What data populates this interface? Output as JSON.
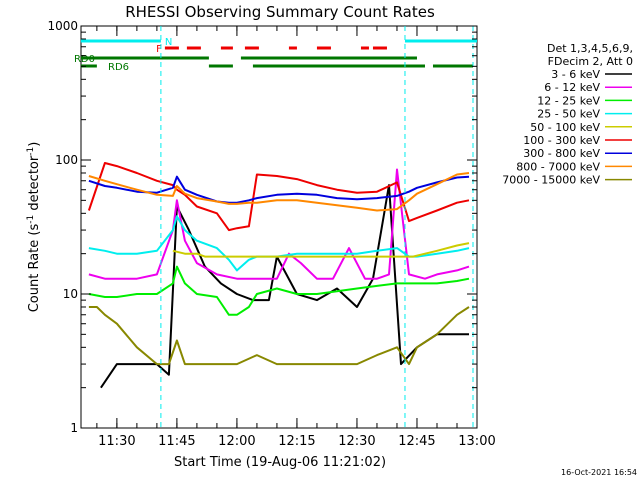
{
  "chart_data": {
    "type": "line",
    "title": "RHESSI Observing Summary Count Rates",
    "xlabel": "Start Time (19-Aug-06 11:21:02)",
    "ylabel": "Count Rate (s",
    "ylabel_sup1": "-1",
    "ylabel_mid": " detector",
    "ylabel_sup2": "-1",
    "ylabel_end": ")",
    "y_scale": "log",
    "xlim": [
      "11:21:02",
      "13:00:00"
    ],
    "ylim": [
      1,
      1000
    ],
    "x_ticks": [
      "11:30",
      "11:45",
      "12:00",
      "12:15",
      "12:30",
      "12:45",
      "13:00"
    ],
    "y_ticks": [
      "1",
      "10",
      "100",
      "1000"
    ],
    "timestamp": "16-Oct-2021 16:54",
    "legend": {
      "position": "right",
      "header": [
        "Det 1,3,4,5,6,9,",
        "FDecim 2, Att 0"
      ]
    },
    "series": [
      {
        "name": "3 - 6 keV",
        "color": "#000000",
        "x": [
          "11:26",
          "11:30",
          "11:35",
          "11:40",
          "11:43",
          "11:45",
          "11:48",
          "11:52",
          "11:56",
          "12:00",
          "12:04",
          "12:08",
          "12:10",
          "12:15",
          "12:20",
          "12:25",
          "12:30",
          "12:34",
          "12:38",
          "12:41",
          "12:45",
          "12:50",
          "12:55",
          "12:58"
        ],
        "y": [
          2,
          3,
          3,
          3,
          2.5,
          45,
          30,
          16,
          12,
          10,
          9,
          9,
          19,
          10,
          9,
          11,
          8,
          13,
          65,
          3,
          4,
          5,
          5,
          5
        ]
      },
      {
        "name": "6 - 12 keV",
        "color": "#ee00ee",
        "x": [
          "11:23",
          "11:27",
          "11:30",
          "11:35",
          "11:40",
          "11:44",
          "11:45",
          "11:47",
          "11:50",
          "11:55",
          "12:00",
          "12:05",
          "12:10",
          "12:13",
          "12:16",
          "12:20",
          "12:24",
          "12:28",
          "12:32",
          "12:35",
          "12:38",
          "12:40",
          "12:43",
          "12:47",
          "12:50",
          "12:55",
          "12:58"
        ],
        "y": [
          14,
          13,
          13,
          13,
          14,
          30,
          50,
          25,
          17,
          14,
          13,
          13,
          13,
          20,
          17,
          13,
          13,
          22,
          13,
          13,
          14,
          85,
          14,
          13,
          14,
          15,
          16
        ]
      },
      {
        "name": "12 - 25 keV",
        "color": "#00ee00",
        "x": [
          "11:23",
          "11:27",
          "11:30",
          "11:35",
          "11:40",
          "11:44",
          "11:45",
          "11:47",
          "11:50",
          "11:55",
          "11:58",
          "12:00",
          "12:03",
          "12:05",
          "12:10",
          "12:15",
          "12:20",
          "12:25",
          "12:30",
          "12:35",
          "12:40",
          "12:43",
          "12:45",
          "12:50",
          "12:55",
          "12:58"
        ],
        "y": [
          10,
          9.5,
          9.5,
          10,
          10,
          12,
          16,
          12,
          10,
          9.5,
          7,
          7,
          8,
          10,
          11,
          10,
          10,
          10.5,
          11,
          11.5,
          12,
          12,
          12,
          12,
          12.5,
          13
        ]
      },
      {
        "name": "25 - 50 keV",
        "color": "#00eeee",
        "x": [
          "11:23",
          "11:27",
          "11:30",
          "11:35",
          "11:40",
          "11:44",
          "11:45",
          "11:47",
          "11:50",
          "11:55",
          "11:58",
          "12:00",
          "12:03",
          "12:05",
          "12:10",
          "12:15",
          "12:20",
          "12:25",
          "12:30",
          "12:35",
          "12:40",
          "12:43",
          "12:45",
          "12:50",
          "12:55",
          "12:58"
        ],
        "y": [
          22,
          21,
          20,
          20,
          21,
          30,
          38,
          30,
          25,
          22,
          18,
          15,
          18,
          19,
          19,
          20,
          20,
          20,
          20,
          21,
          22,
          19,
          19,
          20,
          21,
          22
        ]
      },
      {
        "name": "50 - 100 keV",
        "color": "#cccc00",
        "x": [
          "11:44",
          "11:47",
          "11:50",
          "11:52",
          "12:44",
          "12:47",
          "12:50",
          "12:55",
          "12:58"
        ],
        "y": [
          21,
          20,
          20,
          19,
          19,
          20,
          21,
          23,
          24
        ]
      },
      {
        "name": "100 - 300 keV",
        "color": "#ee0000",
        "x": [
          "11:23",
          "11:27",
          "11:30",
          "11:35",
          "11:40",
          "11:44",
          "11:45",
          "11:47",
          "11:50",
          "11:55",
          "11:58",
          "12:00",
          "12:03",
          "12:05",
          "12:10",
          "12:15",
          "12:20",
          "12:25",
          "12:30",
          "12:35",
          "12:40",
          "12:43",
          "12:45",
          "12:50",
          "12:55",
          "12:58"
        ],
        "y": [
          42,
          95,
          90,
          80,
          70,
          65,
          60,
          55,
          45,
          40,
          30,
          31,
          32,
          78,
          76,
          72,
          65,
          60,
          57,
          58,
          68,
          35,
          37,
          42,
          48,
          50
        ]
      },
      {
        "name": "300 - 800 keV",
        "color": "#0000dd",
        "x": [
          "11:23",
          "11:27",
          "11:30",
          "11:35",
          "11:40",
          "11:44",
          "11:45",
          "11:47",
          "11:50",
          "11:55",
          "11:58",
          "12:00",
          "12:03",
          "12:05",
          "12:10",
          "12:15",
          "12:20",
          "12:25",
          "12:30",
          "12:35",
          "12:40",
          "12:43",
          "12:45",
          "12:50",
          "12:55",
          "12:58"
        ],
        "y": [
          70,
          64,
          62,
          58,
          57,
          62,
          75,
          60,
          55,
          49,
          48,
          48,
          50,
          52,
          55,
          56,
          55,
          52,
          51,
          52,
          54,
          58,
          62,
          68,
          74,
          75
        ]
      },
      {
        "name": "800 - 7000 keV",
        "color": "#ff8800",
        "x": [
          "11:23",
          "11:27",
          "11:30",
          "11:35",
          "11:40",
          "11:44",
          "11:45",
          "11:47",
          "11:50",
          "11:55",
          "11:58",
          "12:00",
          "12:03",
          "12:05",
          "12:10",
          "12:15",
          "12:20",
          "12:25",
          "12:30",
          "12:35",
          "12:40",
          "12:43",
          "12:45",
          "12:50",
          "12:55",
          "12:58"
        ],
        "y": [
          76,
          70,
          66,
          60,
          55,
          54,
          64,
          56,
          52,
          49,
          47,
          47,
          48,
          48,
          50,
          50,
          48,
          46,
          44,
          42,
          43,
          50,
          56,
          66,
          78,
          80
        ]
      },
      {
        "name": "7000 - 15000 keV",
        "color": "#888800",
        "x": [
          "11:23",
          "11:25",
          "11:27",
          "11:30",
          "11:35",
          "11:40",
          "11:43",
          "11:45",
          "11:47",
          "11:50",
          "11:55",
          "12:00",
          "12:05",
          "12:10",
          "12:15",
          "12:20",
          "12:25",
          "12:30",
          "12:35",
          "12:40",
          "12:43",
          "12:45",
          "12:50",
          "12:55",
          "12:58"
        ],
        "y": [
          8,
          8,
          7,
          6,
          4,
          3,
          3,
          4.5,
          3,
          3,
          3,
          3,
          3.5,
          3,
          3,
          3,
          3,
          3,
          3.5,
          4,
          3,
          4,
          5,
          7,
          8
        ]
      }
    ],
    "annotations": {
      "flags": [
        {
          "label": "N",
          "color": "#00eeee",
          "segments": [
            [
              "11:21",
              "11:41"
            ],
            [
              "12:42",
              "13:00"
            ]
          ]
        },
        {
          "label": "F",
          "color": "#ee0000",
          "segments": [
            [
              "11:42",
              "11:51"
            ],
            [
              "11:56",
              "11:59"
            ],
            [
              "12:02",
              "12:06"
            ],
            [
              "12:13",
              "12:15"
            ],
            [
              "12:20",
              "12:24"
            ],
            [
              "12:31",
              "12:33"
            ],
            [
              "12:34",
              "12:38"
            ]
          ]
        },
        {
          "label": "RD0",
          "color": "#007700",
          "segments": [
            [
              "11:21",
              "11:53"
            ],
            [
              "12:01",
              "12:45"
            ]
          ]
        },
        {
          "label": "RD6",
          "color": "#007700",
          "segments": [
            [
              "11:21",
              "11:25"
            ],
            [
              "11:53",
              "11:59"
            ],
            [
              "12:04",
              "12:47"
            ],
            [
              "12:49",
              "12:59"
            ]
          ]
        }
      ],
      "vlines": [
        {
          "x": "11:41",
          "color": "#00eeee"
        },
        {
          "x": "12:42",
          "color": "#00eeee"
        },
        {
          "x": "12:59",
          "color": "#00eeee"
        }
      ]
    }
  }
}
